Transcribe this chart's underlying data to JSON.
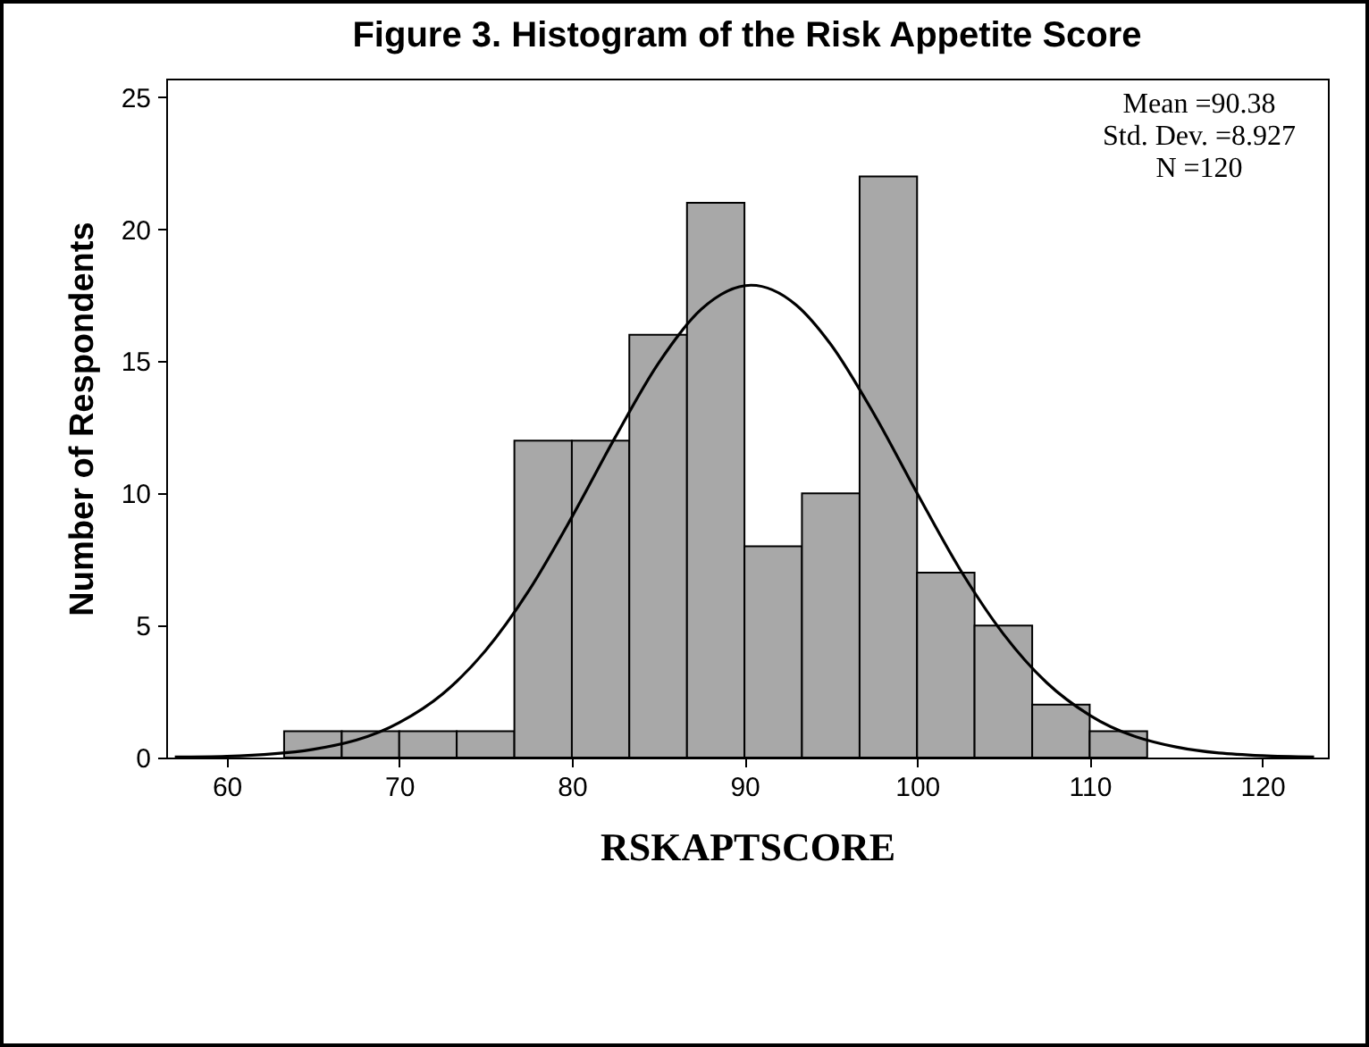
{
  "chart_data": {
    "type": "histogram",
    "title": "Figure 3. Histogram of the Risk Appetite Score",
    "xlabel": "RSKAPTSCORE",
    "ylabel": "Number of Respondents",
    "bins": [
      63.33,
      66.67,
      70,
      73.33,
      76.67,
      80,
      83.33,
      86.67,
      90,
      93.33,
      96.67,
      100,
      103.33,
      106.67,
      110,
      113.33
    ],
    "values": [
      1,
      1,
      1,
      1,
      12,
      12,
      16,
      21,
      8,
      10,
      22,
      7,
      5,
      2,
      1
    ],
    "color": "#a8a8a8",
    "series": [
      {
        "type": "line",
        "color": "#000000",
        "x": [
          57,
          60,
          65,
          70,
          72.5,
          75,
          77.5,
          80,
          82.5,
          85,
          87.5,
          90.38,
          93,
          95,
          97.5,
          100,
          102.5,
          105,
          107.5,
          110,
          115,
          120,
          123
        ],
        "values": [
          0.02,
          0.05,
          0.31,
          1.32,
          2.4,
          4.05,
          6.31,
          9.1,
          12.11,
          14.91,
          16.97,
          17.88,
          17.13,
          15.64,
          13.01,
          10.01,
          7.11,
          4.68,
          2.84,
          1.6,
          0.4,
          0.07,
          0.02
        ]
      }
    ],
    "annotations": [
      "Mean =90.38",
      "Std. Dev. =8.927",
      "N =120"
    ],
    "xlim": [
      56.5,
      123.8
    ],
    "xticks": [
      60,
      70,
      80,
      90,
      100,
      110,
      120
    ],
    "ylim": [
      0,
      25.7
    ],
    "yticks": [
      0,
      5,
      10,
      15,
      20,
      25
    ],
    "grid": false
  }
}
